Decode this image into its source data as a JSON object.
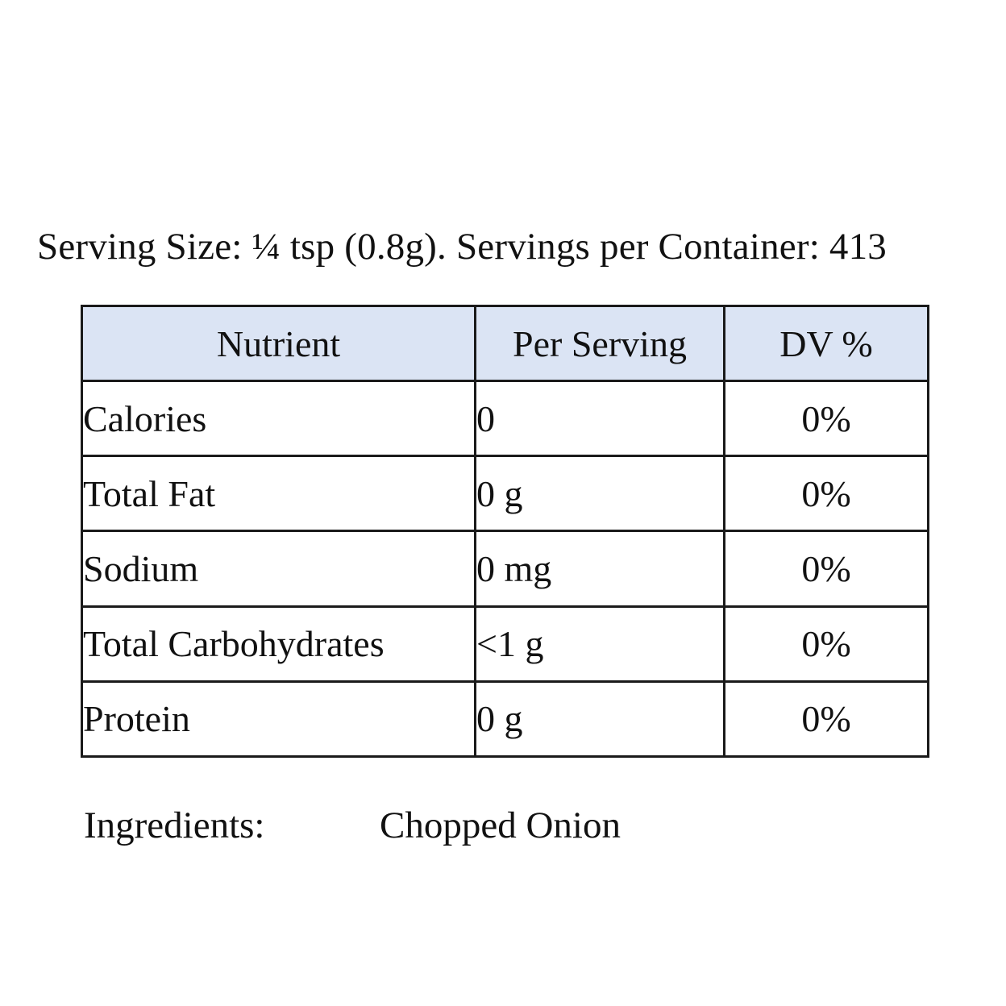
{
  "serving_line": "Serving Size: ¼ tsp (0.8g). Servings per Container: 413",
  "table": {
    "headers": [
      "Nutrient",
      "Per Serving",
      "DV %"
    ],
    "rows": [
      {
        "nutrient": "Calories",
        "per_serving": "0",
        "dv": "0%"
      },
      {
        "nutrient": "Total Fat",
        "per_serving": "0 g",
        "dv": "0%"
      },
      {
        "nutrient": "Sodium",
        "per_serving": "0 mg",
        "dv": "0%"
      },
      {
        "nutrient": "Total Carbohydrates",
        "per_serving": "<1 g",
        "dv": "0%"
      },
      {
        "nutrient": "Protein",
        "per_serving": "0 g",
        "dv": "0%"
      }
    ],
    "header_color": "#dbe4f4",
    "border_color": "#1a1a1a"
  },
  "ingredients": {
    "label": "Ingredients:",
    "value": "Chopped Onion"
  }
}
